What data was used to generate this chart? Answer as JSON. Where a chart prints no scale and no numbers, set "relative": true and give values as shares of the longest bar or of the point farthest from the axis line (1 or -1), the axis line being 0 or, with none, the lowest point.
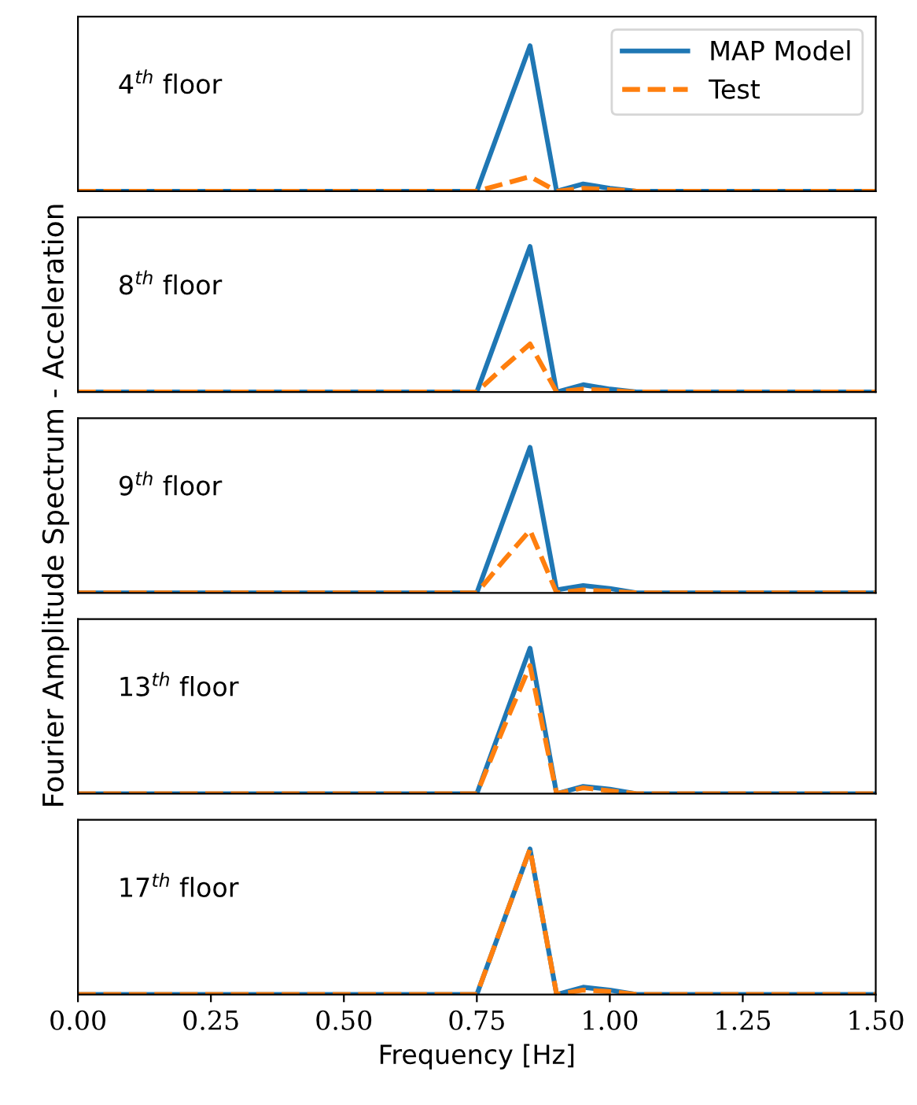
{
  "chart_data": [
    {
      "type": "line",
      "relative": true,
      "annotations": [
        "4$^{th}$ floor"
      ],
      "x": [
        0,
        0.75,
        0.8,
        0.85,
        0.9,
        0.95,
        1.0,
        1.05,
        1.5
      ],
      "xlim": [
        0,
        1.5
      ],
      "tick_labels": false,
      "legend": "top right",
      "grid": false,
      "series": [
        {
          "name": "MAP Model",
          "color": "#1f77b4",
          "line_style": "solid",
          "values": [
            0,
            0,
            0.5,
            1,
            0,
            0.05,
            0.02,
            0,
            0
          ]
        },
        {
          "name": "Test",
          "color": "#ff7f0e",
          "line_style": "dashed",
          "values": [
            0,
            0,
            0.05,
            0.1,
            0,
            0.02,
            0.01,
            0,
            0
          ]
        }
      ]
    },
    {
      "type": "line",
      "relative": true,
      "annotations": [
        "8$^{th}$ floor"
      ],
      "x": [
        0,
        0.75,
        0.8,
        0.85,
        0.9,
        0.95,
        1.0,
        1.05,
        1.5
      ],
      "xlim": [
        0,
        1.5
      ],
      "tick_labels": false,
      "grid": false,
      "series": [
        {
          "color": "#1f77b4",
          "line_style": "solid",
          "values": [
            0,
            0,
            0.5,
            1,
            0,
            0.05,
            0.02,
            0,
            0
          ]
        },
        {
          "color": "#ff7f0e",
          "line_style": "dashed",
          "values": [
            0,
            0,
            0.17,
            0.33,
            0,
            0.02,
            0.01,
            0,
            0
          ]
        }
      ]
    },
    {
      "type": "line",
      "relative": true,
      "ylabel": "Fourier Amplitude Spectrum - Acceleration",
      "annotations": [
        "9$^{th}$ floor"
      ],
      "x": [
        0,
        0.75,
        0.8,
        0.85,
        0.9,
        0.95,
        1.0,
        1.05,
        1.5
      ],
      "xlim": [
        0,
        1.5
      ],
      "tick_labels": false,
      "grid": false,
      "series": [
        {
          "color": "#1f77b4",
          "line_style": "solid",
          "values": [
            0,
            0,
            0.5,
            1,
            0.02,
            0.05,
            0.03,
            0,
            0
          ]
        },
        {
          "color": "#ff7f0e",
          "line_style": "dashed",
          "values": [
            0,
            0,
            0.22,
            0.43,
            0,
            0.02,
            0.01,
            0,
            0
          ]
        }
      ]
    },
    {
      "type": "line",
      "relative": true,
      "annotations": [
        "13$^{th}$ floor"
      ],
      "x": [
        0,
        0.75,
        0.8,
        0.85,
        0.9,
        0.95,
        1.0,
        1.05,
        1.5
      ],
      "xlim": [
        0,
        1.5
      ],
      "tick_labels": false,
      "grid": false,
      "series": [
        {
          "color": "#1f77b4",
          "line_style": "solid",
          "values": [
            0,
            0,
            0.5,
            1,
            0,
            0.05,
            0.03,
            0,
            0
          ]
        },
        {
          "color": "#ff7f0e",
          "line_style": "dashed",
          "values": [
            0,
            0,
            0.45,
            0.88,
            0,
            0.04,
            0.02,
            0,
            0
          ]
        }
      ]
    },
    {
      "type": "line",
      "relative": true,
      "xlabel": "Frequency [Hz]",
      "annotations": [
        "17$^{th}$ floor"
      ],
      "x": [
        0,
        0.75,
        0.8,
        0.85,
        0.9,
        0.95,
        1.0,
        1.05,
        1.5
      ],
      "xlim": [
        0,
        1.5
      ],
      "xticks": [
        {
          "value": 0,
          "label": "0.00"
        },
        0.25,
        {
          "value": 0.5,
          "label": "0.50"
        },
        0.75,
        {
          "value": 1,
          "label": "1.00"
        },
        1.25,
        {
          "value": 1.5,
          "label": "1.50"
        }
      ],
      "tick_labels": "x",
      "grid": false,
      "series": [
        {
          "color": "#1f77b4",
          "line_style": "solid",
          "values": [
            0,
            0,
            0.5,
            1,
            0,
            0.05,
            0.03,
            0,
            0
          ]
        },
        {
          "color": "#ff7f0e",
          "line_style": "dashed",
          "values": [
            0,
            0,
            0.5,
            1,
            0,
            0.03,
            0.02,
            0,
            0
          ]
        }
      ]
    }
  ]
}
